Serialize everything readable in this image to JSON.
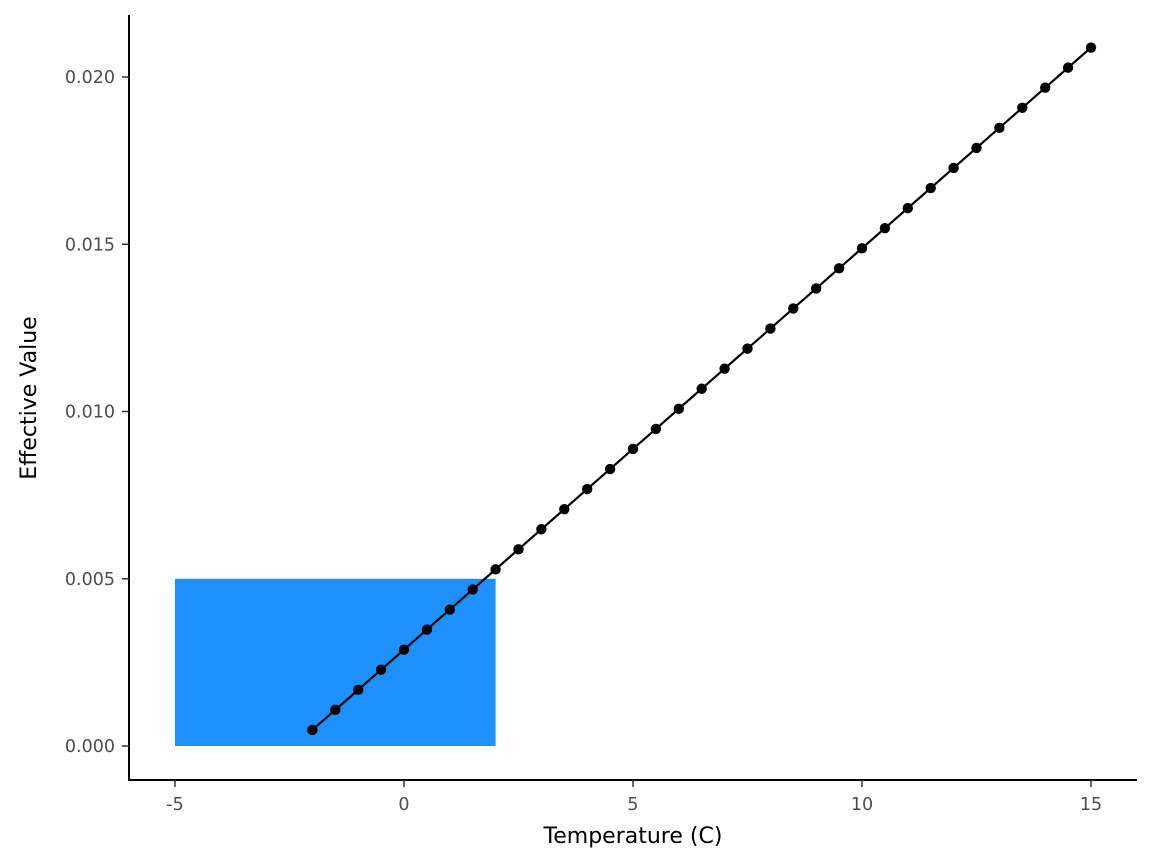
{
  "chart_data": {
    "type": "line",
    "title": "",
    "xlabel": "Temperature (C)",
    "ylabel": "Effective Value",
    "xlim": [
      -6,
      16
    ],
    "ylim": [
      -0.001,
      0.0218
    ],
    "x_ticks": [
      -5,
      0,
      5,
      10,
      15
    ],
    "x_tick_labels": [
      "-5",
      "0",
      "5",
      "10",
      "15"
    ],
    "y_ticks": [
      0.0,
      0.005,
      0.01,
      0.015,
      0.02
    ],
    "y_tick_labels": [
      "0.000",
      "0.005",
      "0.010",
      "0.015",
      "0.020"
    ],
    "grid": false,
    "legend": "none",
    "shaded_region": {
      "x": [
        -5,
        2
      ],
      "y": [
        0.0,
        0.005
      ],
      "color": "#1E90FF"
    },
    "series": [
      {
        "color": "#000000",
        "markers": true,
        "x": [
          -2,
          -1.5,
          -1,
          -0.5,
          0,
          0.5,
          1,
          1.5,
          2,
          2.5,
          3,
          3.5,
          4,
          4.5,
          5,
          5.5,
          6,
          6.5,
          7,
          7.5,
          8,
          8.5,
          9,
          9.5,
          10,
          10.5,
          11,
          11.5,
          12,
          12.5,
          13,
          13.5,
          14,
          14.5,
          15
        ],
        "y": [
          0.00048,
          0.00108,
          0.00168,
          0.00228,
          0.00288,
          0.00348,
          0.00408,
          0.00468,
          0.00528,
          0.00588,
          0.00648,
          0.00708,
          0.00768,
          0.00828,
          0.00888,
          0.00948,
          0.01008,
          0.01068,
          0.01128,
          0.01188,
          0.01248,
          0.01308,
          0.01368,
          0.01428,
          0.01488,
          0.01548,
          0.01608,
          0.01668,
          0.01728,
          0.01788,
          0.01848,
          0.01908,
          0.01968,
          0.02028,
          0.02088
        ]
      }
    ]
  }
}
